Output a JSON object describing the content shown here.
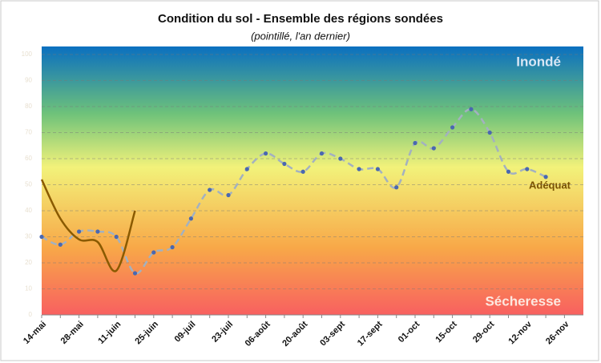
{
  "chart_data": {
    "type": "line",
    "title": "Condition du sol - Ensemble des régions sondées",
    "subtitle": "(pointillé, l'an dernier)",
    "annotations": [
      "Inondé",
      "Adéquat",
      "Sécheresse"
    ],
    "categories": [
      "14-mai",
      null,
      "28-mai",
      null,
      "11-juin",
      null,
      "25-juin",
      null,
      "09-juil",
      null,
      "23-juil",
      null,
      "06-août",
      null,
      "20-août",
      null,
      "03-sept",
      null,
      "17-sept",
      null,
      "01-oct",
      null,
      "15-oct",
      null,
      "29-oct",
      null,
      "12-nov",
      null,
      "26-nov"
    ],
    "series": [
      {
        "color": "#a3b1c0",
        "dashed": true,
        "markers": true,
        "values": [
          30,
          27,
          32,
          32,
          30,
          16,
          24,
          26,
          37,
          48,
          46,
          56,
          62,
          58,
          55,
          62,
          60,
          56,
          56,
          49,
          66,
          64,
          72,
          79,
          70,
          55,
          56,
          53,
          null
        ]
      },
      {
        "color": "#8a5a00",
        "dashed": false,
        "markers": false,
        "values": [
          52,
          37,
          29,
          28,
          17,
          40,
          null,
          null,
          null,
          null,
          null,
          null,
          null,
          null,
          null,
          null,
          null,
          null,
          null,
          null,
          null,
          null,
          null,
          null,
          null,
          null,
          null,
          null,
          null
        ]
      }
    ],
    "ylim": [
      0,
      100
    ],
    "yticks": [
      0,
      10,
      20,
      30,
      40,
      50,
      60,
      70,
      80,
      90,
      100
    ],
    "grid": true
  }
}
